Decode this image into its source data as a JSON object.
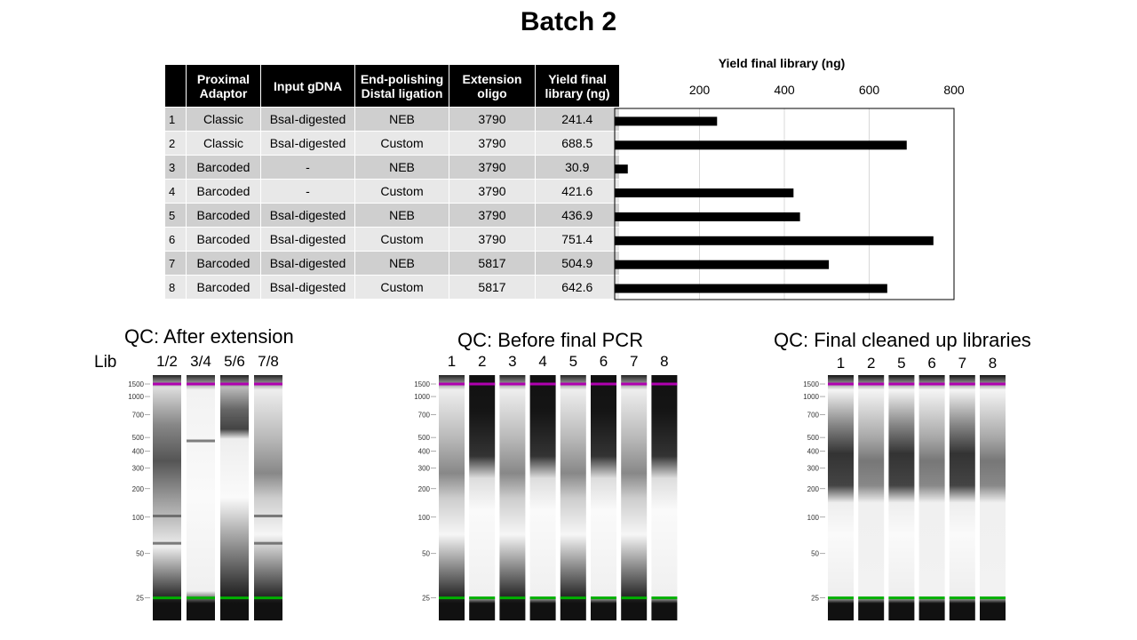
{
  "title": "Batch 2",
  "table": {
    "headers": [
      "",
      "Proximal Adaptor",
      "Input gDNA",
      "End-polishing Distal ligation",
      "Extension oligo",
      "Yield final library (ng)"
    ],
    "rows": [
      {
        "n": "1",
        "adaptor": "Classic",
        "gdna": "BsaI-digested",
        "polish": "NEB",
        "oligo": "3790",
        "yield": "241.4"
      },
      {
        "n": "2",
        "adaptor": "Classic",
        "gdna": "BsaI-digested",
        "polish": "Custom",
        "oligo": "3790",
        "yield": "688.5"
      },
      {
        "n": "3",
        "adaptor": "Barcoded",
        "gdna": "-",
        "polish": "NEB",
        "oligo": "3790",
        "yield": "30.9"
      },
      {
        "n": "4",
        "adaptor": "Barcoded",
        "gdna": "-",
        "polish": "Custom",
        "oligo": "3790",
        "yield": "421.6"
      },
      {
        "n": "5",
        "adaptor": "Barcoded",
        "gdna": "BsaI-digested",
        "polish": "NEB",
        "oligo": "3790",
        "yield": "436.9"
      },
      {
        "n": "6",
        "adaptor": "Barcoded",
        "gdna": "BsaI-digested",
        "polish": "Custom",
        "oligo": "3790",
        "yield": "751.4"
      },
      {
        "n": "7",
        "adaptor": "Barcoded",
        "gdna": "BsaI-digested",
        "polish": "NEB",
        "oligo": "5817",
        "yield": "504.9"
      },
      {
        "n": "8",
        "adaptor": "Barcoded",
        "gdna": "BsaI-digested",
        "polish": "Custom",
        "oligo": "5817",
        "yield": "642.6"
      }
    ]
  },
  "chart_data": {
    "type": "bar",
    "orientation": "horizontal",
    "title": "Yield final library (ng)",
    "categories": [
      "1",
      "2",
      "3",
      "4",
      "5",
      "6",
      "7",
      "8"
    ],
    "values": [
      241.4,
      688.5,
      30.9,
      421.6,
      436.9,
      751.4,
      504.9,
      642.6
    ],
    "xlim": [
      0,
      800
    ],
    "xticks": [
      200,
      400,
      600,
      800
    ],
    "xtick_position": "top",
    "grid": true,
    "bar_color": "#000000"
  },
  "gels": [
    {
      "title": "QC: After extension",
      "lib_label": "Lib",
      "lanes": [
        "1/2",
        "3/4",
        "5/6",
        "7/8"
      ],
      "ladder": [
        "1500",
        "1000",
        "700",
        "500",
        "400",
        "300",
        "200",
        "100",
        "50",
        "25"
      ]
    },
    {
      "title": "QC: Before final PCR",
      "lanes": [
        "1",
        "2",
        "3",
        "4",
        "5",
        "6",
        "7",
        "8"
      ],
      "ladder": [
        "1500",
        "1000",
        "700",
        "500",
        "400",
        "300",
        "200",
        "100",
        "50",
        "25"
      ]
    },
    {
      "title": "QC: Final cleaned up libraries",
      "lanes": [
        "1",
        "2",
        "5",
        "6",
        "7",
        "8"
      ],
      "ladder": [
        "1500",
        "1000",
        "700",
        "500",
        "400",
        "300",
        "200",
        "100",
        "50",
        "25"
      ]
    }
  ],
  "colors": {
    "upper_marker": "#b000b0",
    "lower_marker": "#00b000"
  }
}
